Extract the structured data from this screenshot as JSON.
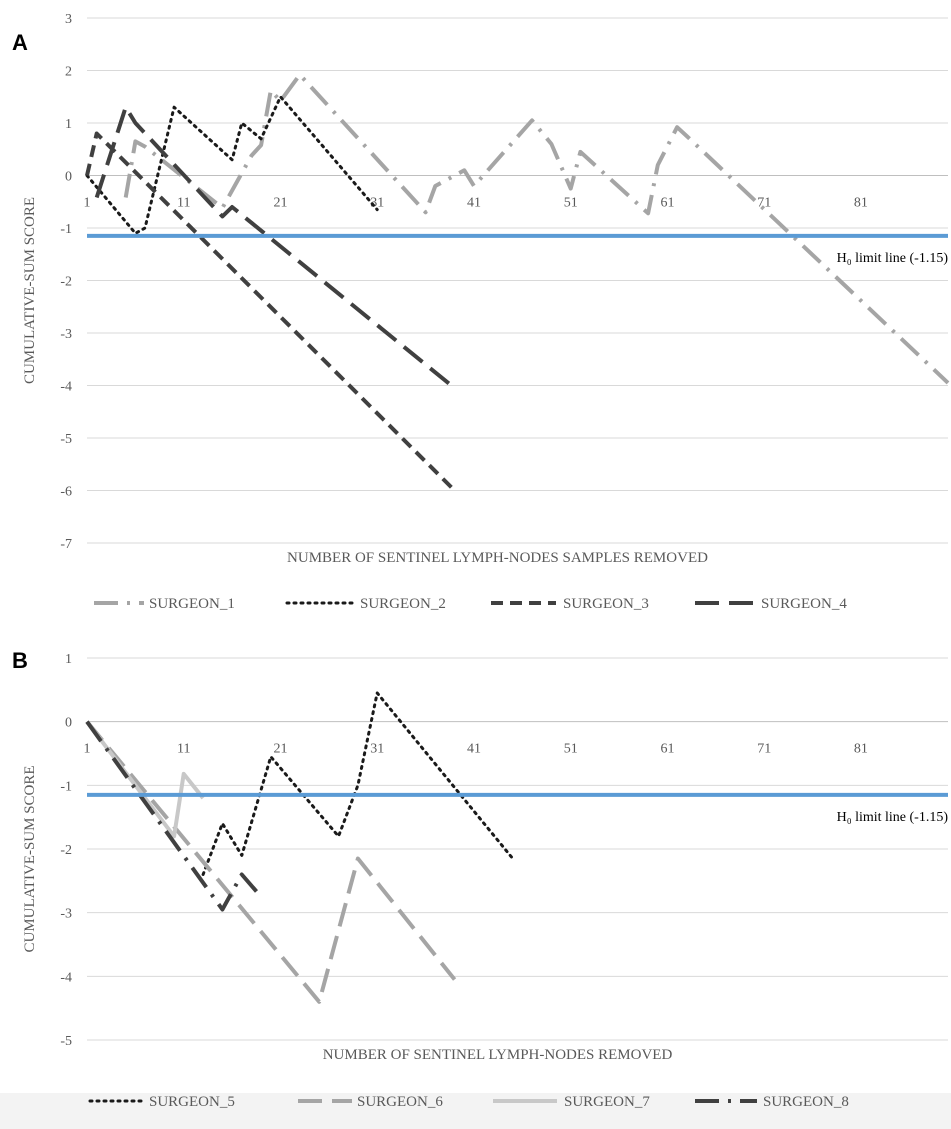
{
  "chart_data": [
    {
      "panel": "A",
      "type": "line",
      "xlabel": "NUMBER OF SENTINEL LYMPH-NODES SAMPLES REMOVED",
      "ylabel": "CUMULATIVE-SUM SCORE",
      "ylim": [
        -7,
        3
      ],
      "xlim": [
        1,
        90
      ],
      "y_ticks": [
        3,
        2,
        1,
        0,
        -1,
        -2,
        -3,
        -4,
        -5,
        -6,
        -7
      ],
      "x_ticks": [
        1,
        11,
        21,
        31,
        41,
        51,
        61,
        71,
        81
      ],
      "grid": true,
      "legend_position": "bottom",
      "limit_line": {
        "label": "H₀ limit line (-1.15)",
        "value": -1.15,
        "color": "#5b9bd5"
      },
      "series": [
        {
          "name": "SURGEON_1",
          "color": "#a5a5a5",
          "dash": "dashdot",
          "x": [
            5,
            6,
            7,
            15,
            18,
            19,
            20,
            21,
            23,
            36,
            37,
            40,
            41,
            47,
            49,
            51,
            52,
            59,
            60,
            62,
            63,
            90
          ],
          "y": [
            -0.42,
            0.65,
            0.55,
            -0.62,
            0.38,
            0.58,
            1.62,
            1.42,
            1.92,
            -0.7,
            -0.2,
            0.1,
            -0.2,
            1.05,
            0.6,
            -0.25,
            0.45,
            -0.72,
            0.2,
            0.92,
            0.75,
            -3.95
          ]
        },
        {
          "name": "SURGEON_2",
          "color": "#1a1a1a",
          "dash": "dotted",
          "x": [
            1,
            6,
            7,
            10,
            16,
            17,
            19,
            21,
            31
          ],
          "y": [
            0.0,
            -1.1,
            -1.0,
            1.3,
            0.3,
            1.0,
            0.7,
            1.5,
            -0.65
          ]
        },
        {
          "name": "SURGEON_3",
          "color": "#404040",
          "dash": "shortdash",
          "x": [
            1,
            2,
            39
          ],
          "y": [
            0.0,
            0.8,
            -6.0
          ]
        },
        {
          "name": "SURGEON_4",
          "color": "#404040",
          "dash": "longdash",
          "x": [
            2,
            5,
            6,
            15,
            16,
            39
          ],
          "y": [
            -0.42,
            1.3,
            1.0,
            -0.78,
            -0.6,
            -4.05
          ]
        }
      ]
    },
    {
      "panel": "B",
      "type": "line",
      "xlabel": "NUMBER OF SENTINEL LYMPH-NODES REMOVED",
      "ylabel": "CUMULATIVE-SUM SCORE",
      "ylim": [
        -5,
        1
      ],
      "xlim": [
        1,
        90
      ],
      "y_ticks": [
        1,
        0,
        -1,
        -2,
        -3,
        -4,
        -5
      ],
      "x_ticks": [
        1,
        11,
        21,
        31,
        41,
        51,
        61,
        71,
        81
      ],
      "grid": true,
      "legend_position": "bottom",
      "limit_line": {
        "label": "H₀ limit line (-1.15)",
        "value": -1.15,
        "color": "#5b9bd5"
      },
      "series": [
        {
          "name": "SURGEON_5",
          "color": "#1a1a1a",
          "dash": "dotted",
          "x": [
            13,
            15,
            17,
            20,
            27,
            29,
            31,
            45
          ],
          "y": [
            -2.4,
            -1.6,
            -2.1,
            -0.55,
            -1.8,
            -1.0,
            0.45,
            -2.15
          ]
        },
        {
          "name": "SURGEON_6",
          "color": "#a5a5a5",
          "dash": "longdash",
          "x": [
            1,
            25,
            29,
            39
          ],
          "y": [
            0.0,
            -4.4,
            -2.15,
            -4.05
          ]
        },
        {
          "name": "SURGEON_7",
          "color": "#c8c8c8",
          "dash": "solid",
          "x": [
            1,
            10,
            11,
            13
          ],
          "y": [
            0.0,
            -1.8,
            -0.82,
            -1.2
          ]
        },
        {
          "name": "SURGEON_8",
          "color": "#404040",
          "dash": "dashdot",
          "x": [
            1,
            15,
            17,
            19
          ],
          "y": [
            0.0,
            -2.95,
            -2.4,
            -2.75
          ]
        }
      ]
    }
  ]
}
